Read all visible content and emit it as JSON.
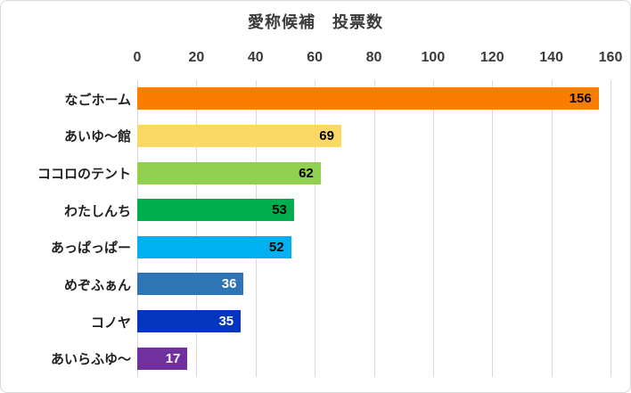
{
  "chart_data": {
    "type": "bar",
    "orientation": "horizontal",
    "title": "愛称候補　投票数",
    "categories": [
      "なごホーム",
      "あいゆ〜館",
      "ココロのテント",
      "わたしんち",
      "あっぱっぱー",
      "めぞふぁん",
      "コノヤ",
      "あいらふゆ〜"
    ],
    "values": [
      156,
      69,
      62,
      53,
      52,
      36,
      35,
      17
    ],
    "bar_colors": [
      "#FB7D00",
      "#FBD863",
      "#92D050",
      "#00AD4F",
      "#00B0F0",
      "#2E75B6",
      "#0435BD",
      "#7030A0"
    ],
    "value_label_colors": [
      "#000000",
      "#000000",
      "#000000",
      "#000000",
      "#000000",
      "#FFFFFF",
      "#FFFFFF",
      "#FFFFFF"
    ],
    "xlim": [
      0,
      160
    ],
    "x_ticks": [
      "0",
      "20",
      "40",
      "60",
      "80",
      "100",
      "120",
      "140",
      "160"
    ],
    "grid": true,
    "gridline_axis": "vertical",
    "value_label_position": "inside-end",
    "axis_position": "top",
    "legend": "none"
  },
  "colors": {
    "background": "#FFFFFF",
    "border": "#D9D9D9",
    "gridline": "#D9D9D9",
    "axis_text": "#3A3A3A",
    "category_text": "#1F1F1F"
  }
}
